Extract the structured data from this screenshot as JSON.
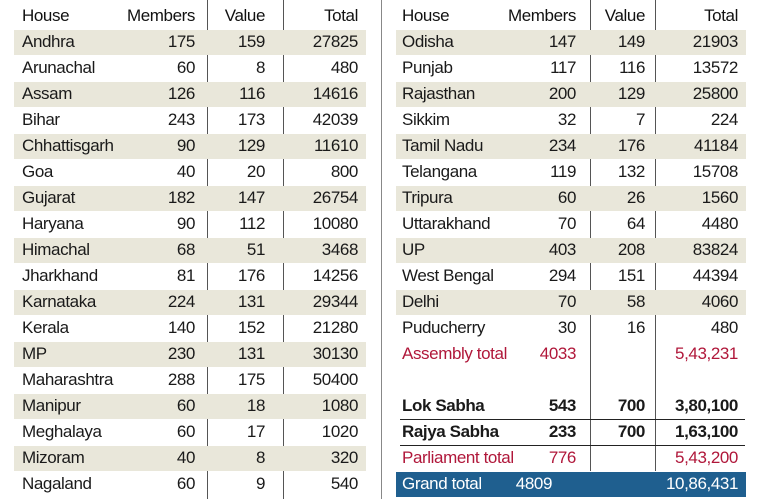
{
  "left_table": {
    "header": [
      "House",
      "Members",
      "Value",
      "Total"
    ],
    "rows": [
      [
        "Andhra",
        175,
        159,
        27825
      ],
      [
        "Arunachal",
        60,
        8,
        480
      ],
      [
        "Assam",
        126,
        116,
        14616
      ],
      [
        "Bihar",
        243,
        173,
        42039
      ],
      [
        "Chhattisgarh",
        90,
        129,
        11610
      ],
      [
        "Goa",
        40,
        20,
        800
      ],
      [
        "Gujarat",
        182,
        147,
        26754
      ],
      [
        "Haryana",
        90,
        112,
        10080
      ],
      [
        "Himachal",
        68,
        51,
        3468
      ],
      [
        "Jharkhand",
        81,
        176,
        14256
      ],
      [
        "Karnataka",
        224,
        131,
        29344
      ],
      [
        "Kerala",
        140,
        152,
        21280
      ],
      [
        "MP",
        230,
        131,
        30130
      ],
      [
        "Maharashtra",
        288,
        175,
        50400
      ],
      [
        "Manipur",
        60,
        18,
        1080
      ],
      [
        "Meghalaya",
        60,
        17,
        1020
      ],
      [
        "Mizoram",
        40,
        8,
        320
      ],
      [
        "Nagaland",
        60,
        9,
        540
      ]
    ]
  },
  "right_table": {
    "header": [
      "House",
      "Members",
      "Value",
      "Total"
    ],
    "rows": [
      [
        "Odisha",
        147,
        149,
        21903
      ],
      [
        "Punjab",
        117,
        116,
        13572
      ],
      [
        "Rajasthan",
        200,
        129,
        25800
      ],
      [
        "Sikkim",
        32,
        7,
        224
      ],
      [
        "Tamil Nadu",
        234,
        176,
        41184
      ],
      [
        "Telangana",
        119,
        132,
        15708
      ],
      [
        "Tripura",
        60,
        26,
        1560
      ],
      [
        "Uttarakhand",
        70,
        64,
        4480
      ],
      [
        "UP",
        403,
        208,
        83824
      ],
      [
        "West Bengal",
        294,
        151,
        44394
      ],
      [
        "Delhi",
        70,
        58,
        4060
      ],
      [
        "Puducherry",
        30,
        16,
        480
      ]
    ],
    "assembly_total": {
      "label": "Assembly total",
      "members": 4033,
      "total": "5,43,231"
    },
    "lok_sabha": {
      "label": "Lok Sabha",
      "members": 543,
      "value": 700,
      "total": "3,80,100"
    },
    "rajya_sabha": {
      "label": "Rajya Sabha",
      "members": 233,
      "value": 700,
      "total": "1,63,100"
    },
    "parliament_total": {
      "label": "Parliament total",
      "members": 776,
      "total": "5,43,200"
    },
    "grand_total": {
      "label": "Grand total",
      "members": 4809,
      "total": "10,86,431"
    }
  }
}
